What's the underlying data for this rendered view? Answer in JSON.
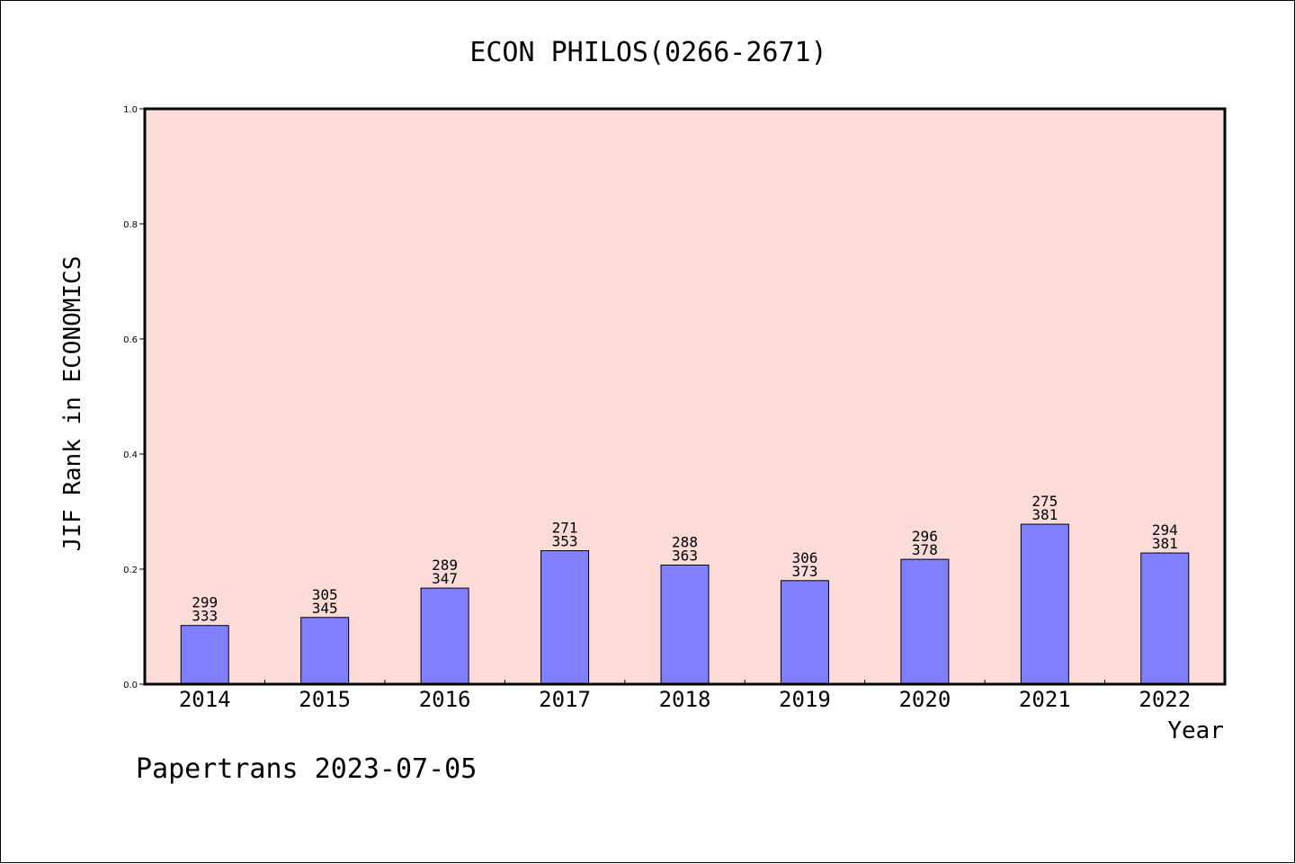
{
  "colors": {
    "plot_background": "#fcdbd8",
    "bar_fill": "#8080ff",
    "bar_stroke": "#000000",
    "axis": "#000000"
  },
  "footer": "Papertrans 2023-07-05",
  "chart_data": {
    "type": "bar",
    "title": "ECON PHILOS(0266-2671)",
    "xlabel": "Year",
    "ylabel": "JIF Rank in ECONOMICS",
    "ylim": [
      0,
      1.0
    ],
    "yticks": [
      "0.0",
      "0.2",
      "0.4",
      "0.6",
      "0.8",
      "1.0"
    ],
    "grid": false,
    "categories": [
      "2014",
      "2015",
      "2016",
      "2017",
      "2018",
      "2019",
      "2020",
      "2021",
      "2022"
    ],
    "values": [
      0.102,
      0.116,
      0.167,
      0.232,
      0.207,
      0.18,
      0.217,
      0.278,
      0.228
    ],
    "rank": [
      299,
      305,
      289,
      271,
      288,
      306,
      296,
      275,
      294
    ],
    "total": [
      333,
      345,
      347,
      353,
      363,
      373,
      378,
      381,
      381
    ]
  }
}
